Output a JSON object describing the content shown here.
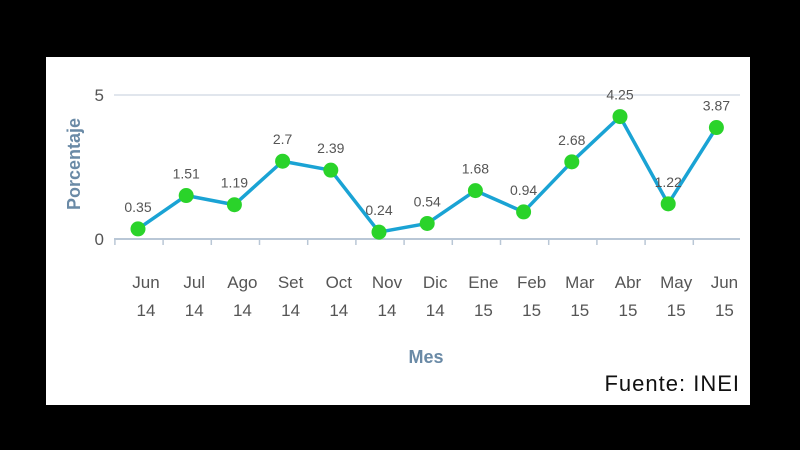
{
  "chart_data": {
    "type": "line",
    "xlabel": "Mes",
    "ylabel": "Porcentaje",
    "ylim": [
      0,
      5
    ],
    "yticks": [
      "0",
      "5"
    ],
    "grid": "horizontal",
    "categories": [
      [
        "Jun",
        "14"
      ],
      [
        "Jul",
        "14"
      ],
      [
        "Ago",
        "14"
      ],
      [
        "Set",
        "14"
      ],
      [
        "Oct",
        "14"
      ],
      [
        "Nov",
        "14"
      ],
      [
        "Dic",
        "14"
      ],
      [
        "Ene",
        "15"
      ],
      [
        "Feb",
        "15"
      ],
      [
        "Mar",
        "15"
      ],
      [
        "Abr",
        "15"
      ],
      [
        "May",
        "15"
      ],
      [
        "Jun",
        "15"
      ]
    ],
    "values": [
      0.35,
      1.51,
      1.19,
      2.7,
      2.39,
      0.24,
      0.54,
      1.68,
      0.94,
      2.68,
      4.25,
      1.22,
      3.87
    ],
    "data_labels": [
      "0.35",
      "1.51",
      "1.19",
      "2.7",
      "2.39",
      "0.24",
      "0.54",
      "1.68",
      "0.94",
      "2.68",
      "4.25",
      "1.22",
      "3.87"
    ],
    "line_color": "#1aa3d4",
    "marker_color": "#2ad32a",
    "source": "Fuente: INEI"
  }
}
